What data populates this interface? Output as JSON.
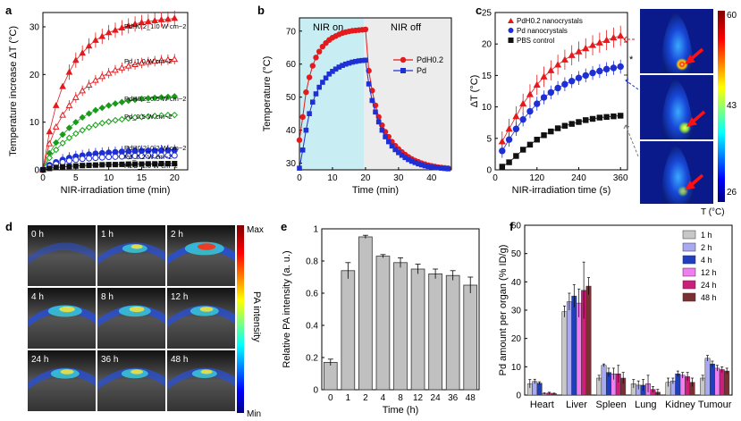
{
  "chart_data": [
    {
      "panel": "a",
      "type": "scatter",
      "xlabel": "NIR-irradiation time (min)",
      "ylabel": "Temperature increase ΔT (°C)",
      "xlim": [
        0,
        22
      ],
      "ylim": [
        0,
        33
      ],
      "xticks": [
        0,
        5,
        10,
        15,
        20
      ],
      "yticks": [
        0,
        10,
        20,
        30
      ],
      "x": [
        0,
        1,
        2,
        3,
        4,
        5,
        6,
        7,
        8,
        9,
        10,
        11,
        12,
        13,
        14,
        15,
        16,
        17,
        18,
        19,
        20
      ],
      "series": [
        {
          "name": "PdH0.2_1.0 W cm−2",
          "color": "#e41a1c",
          "marker": "triangle-filled",
          "values": [
            0,
            8,
            13.5,
            17.5,
            20.5,
            23,
            24.5,
            26,
            27.2,
            28,
            28.8,
            29.3,
            29.8,
            30.2,
            30.6,
            30.9,
            31.1,
            31.3,
            31.5,
            31.6,
            31.8
          ]
        },
        {
          "name": "Pd_1.0 W cm−2",
          "color": "#e41a1c",
          "marker": "triangle-open",
          "values": [
            0,
            5.5,
            9,
            11.5,
            13.5,
            15.2,
            16.6,
            17.8,
            18.8,
            19.6,
            20.3,
            20.9,
            21.4,
            21.8,
            22.1,
            22.4,
            22.6,
            22.8,
            23,
            23.1,
            23.2
          ]
        },
        {
          "name": "PdH0.2_0.5 W cm−2",
          "color": "#1a9b1a",
          "marker": "diamond-filled",
          "values": [
            0,
            3.5,
            5.7,
            7.4,
            8.8,
            10,
            11,
            11.8,
            12.5,
            13,
            13.5,
            13.9,
            14.2,
            14.5,
            14.7,
            14.9,
            15,
            15.1,
            15.2,
            15.3,
            15.4
          ]
        },
        {
          "name": "Pd_0.5 W cm−2",
          "color": "#1a9b1a",
          "marker": "diamond-open",
          "values": [
            0,
            2.5,
            4.2,
            5.6,
            6.7,
            7.6,
            8.3,
            8.9,
            9.4,
            9.8,
            10.1,
            10.4,
            10.6,
            10.8,
            11,
            11.1,
            11.2,
            11.3,
            11.4,
            11.5,
            11.5
          ]
        },
        {
          "name": "PdH0.2_0.2 W cm−2",
          "color": "#1f2fd6",
          "marker": "circle-filled",
          "values": [
            0,
            1.0,
            1.6,
            2.1,
            2.5,
            2.8,
            3.0,
            3.2,
            3.4,
            3.5,
            3.6,
            3.7,
            3.8,
            3.85,
            3.9,
            3.95,
            4.0,
            4.0,
            4.05,
            4.1,
            4.1
          ]
        },
        {
          "name": "Pd_0.2 W cm−2",
          "color": "#1f2fd6",
          "marker": "circle-open",
          "values": [
            0,
            0.7,
            1.2,
            1.6,
            1.9,
            2.1,
            2.3,
            2.4,
            2.5,
            2.6,
            2.7,
            2.75,
            2.8,
            2.85,
            2.9,
            2.9,
            2.95,
            3.0,
            3.0,
            3.0,
            3.0
          ]
        },
        {
          "name": "H2O_1.0 W cm−2",
          "color": "#111111",
          "marker": "square-filled",
          "values": [
            0,
            0.3,
            0.5,
            0.6,
            0.7,
            0.8,
            0.9,
            0.95,
            1.0,
            1.05,
            1.1,
            1.1,
            1.15,
            1.2,
            1.2,
            1.2,
            1.25,
            1.25,
            1.3,
            1.3,
            1.3
          ]
        }
      ]
    },
    {
      "panel": "b",
      "type": "line",
      "xlabel": "Time (min)",
      "ylabel": "Temperature (°C)",
      "xlim": [
        0,
        46
      ],
      "ylim": [
        28,
        74
      ],
      "xticks": [
        0,
        10,
        20,
        30,
        40
      ],
      "yticks": [
        30,
        40,
        50,
        60,
        70
      ],
      "regions": [
        {
          "label": "NIR on",
          "from": 0,
          "to": 20
        },
        {
          "label": "NIR off",
          "from": 20,
          "to": 46
        }
      ],
      "series": [
        {
          "name": "PdH0.2",
          "color": "#e41a1c",
          "marker": "circle",
          "x": [
            0,
            1,
            2,
            3,
            4,
            5,
            6,
            7,
            8,
            9,
            10,
            11,
            12,
            13,
            14,
            15,
            16,
            17,
            18,
            19,
            20,
            21,
            22,
            23,
            24,
            25,
            26,
            27,
            28,
            29,
            30,
            31,
            32,
            33,
            34,
            35,
            36,
            37,
            38,
            39,
            40,
            41,
            42,
            43,
            44,
            45
          ],
          "values": [
            37,
            44,
            51.5,
            56,
            59.5,
            62,
            63.8,
            65.3,
            66.4,
            67.3,
            68,
            68.5,
            69,
            69.4,
            69.7,
            69.9,
            70.1,
            70.2,
            70.3,
            70.4,
            70.5,
            58,
            52,
            47.5,
            44,
            41.5,
            39.5,
            38,
            36.5,
            35.3,
            34.3,
            33.4,
            32.6,
            31.9,
            31.3,
            30.8,
            30.4,
            30.0,
            29.7,
            29.4,
            29.2,
            29.0,
            28.8,
            28.7,
            28.6,
            28.5
          ]
        },
        {
          "name": "Pd",
          "color": "#1f2fd6",
          "marker": "square",
          "x": [
            0,
            1,
            2,
            3,
            4,
            5,
            6,
            7,
            8,
            9,
            10,
            11,
            12,
            13,
            14,
            15,
            16,
            17,
            18,
            19,
            20,
            21,
            22,
            23,
            24,
            25,
            26,
            27,
            28,
            29,
            30,
            31,
            32,
            33,
            34,
            35,
            36,
            37,
            38,
            39,
            40,
            41,
            42,
            43,
            44,
            45
          ],
          "values": [
            28.5,
            34,
            40,
            45,
            48.5,
            51,
            53,
            54.5,
            55.8,
            57,
            57.8,
            58.5,
            59.1,
            59.6,
            60,
            60.3,
            60.6,
            60.8,
            61,
            61.1,
            61.2,
            54,
            49,
            45.5,
            42.5,
            40,
            38,
            36.5,
            35.2,
            34.1,
            33.2,
            32.4,
            31.7,
            31.1,
            30.6,
            30.2,
            29.8,
            29.5,
            29.2,
            29.0,
            28.8,
            28.7,
            28.6,
            28.5,
            28.4,
            28.3
          ]
        }
      ]
    },
    {
      "panel": "c",
      "type": "scatter",
      "xlabel": "NIR-irradiation time (s)",
      "ylabel": "ΔT (°C)",
      "xlim": [
        0,
        380
      ],
      "ylim": [
        0,
        25
      ],
      "xticks": [
        0,
        120,
        240,
        360
      ],
      "yticks": [
        0,
        5,
        10,
        15,
        20,
        25
      ],
      "x": [
        20,
        40,
        60,
        80,
        100,
        120,
        140,
        160,
        180,
        200,
        220,
        240,
        260,
        280,
        300,
        320,
        340,
        360
      ],
      "series": [
        {
          "name": "PdH0.2 nanocrystals",
          "color": "#e41a1c",
          "marker": "triangle-filled",
          "values": [
            4.5,
            6.5,
            8.5,
            10.5,
            12,
            13.5,
            14.8,
            15.8,
            16.7,
            17.5,
            18.2,
            18.8,
            19.3,
            19.8,
            20.2,
            20.6,
            21,
            21.3
          ]
        },
        {
          "name": "Pd nanocrystals",
          "color": "#1f2fd6",
          "marker": "circle-filled",
          "values": [
            3,
            4.8,
            6.5,
            8,
            9.3,
            10.5,
            11.5,
            12.3,
            13,
            13.6,
            14.1,
            14.6,
            15,
            15.4,
            15.7,
            16,
            16.2,
            16.4
          ]
        },
        {
          "name": "PBS control",
          "color": "#111111",
          "marker": "square-filled",
          "values": [
            0.5,
            1.2,
            2.2,
            3.2,
            4.0,
            4.8,
            5.5,
            6.1,
            6.6,
            7.0,
            7.3,
            7.6,
            7.9,
            8.1,
            8.3,
            8.4,
            8.5,
            8.6
          ]
        }
      ],
      "significance": "*",
      "colorbar": {
        "label": "T (°C)",
        "ticks": [
          "60",
          "43",
          "26"
        ]
      }
    },
    {
      "panel": "d",
      "type": "heatmap",
      "timepoints": [
        "0 h",
        "1 h",
        "2 h",
        "4 h",
        "8 h",
        "12 h",
        "24 h",
        "36 h",
        "48 h"
      ],
      "colorbar": {
        "label": "PA intensity",
        "max": "Max",
        "min": "Min"
      }
    },
    {
      "panel": "e",
      "type": "bar",
      "xlabel": "Time (h)",
      "ylabel": "Relative PA intensity (a. u.)",
      "ylim": [
        0,
        1.0
      ],
      "yticks": [
        0.0,
        0.2,
        0.4,
        0.6,
        0.8,
        1.0
      ],
      "categories": [
        "0",
        "1",
        "2",
        "4",
        "8",
        "12",
        "24",
        "36",
        "48"
      ],
      "values": [
        0.17,
        0.74,
        0.95,
        0.83,
        0.79,
        0.75,
        0.72,
        0.71,
        0.65
      ],
      "errors": [
        0.02,
        0.05,
        0.01,
        0.01,
        0.03,
        0.03,
        0.03,
        0.03,
        0.05
      ]
    },
    {
      "panel": "f",
      "type": "bar",
      "xlabel": "",
      "ylabel": "Pd amount per organ (% ID/g)",
      "ylim": [
        0,
        60
      ],
      "yticks": [
        0,
        10,
        20,
        30,
        40,
        50,
        60
      ],
      "categories": [
        "Heart",
        "Liver",
        "Spleen",
        "Lung",
        "Kidney",
        "Tumour"
      ],
      "series": [
        {
          "name": "1 h",
          "color": "#c8c8c8",
          "values": [
            4,
            29.5,
            6,
            4,
            4.5,
            6
          ],
          "errors": [
            1.5,
            2,
            1,
            1.5,
            1.5,
            1
          ]
        },
        {
          "name": "2 h",
          "color": "#a9a9f2",
          "values": [
            4.8,
            33,
            10.5,
            3.5,
            5,
            13
          ],
          "errors": [
            0.8,
            3,
            0.5,
            1.5,
            1,
            1
          ]
        },
        {
          "name": "4 h",
          "color": "#1f3fbf",
          "values": [
            4.2,
            35,
            8,
            3.5,
            7.5,
            11
          ],
          "errors": [
            0.5,
            4,
            1.5,
            2,
            1,
            1
          ]
        },
        {
          "name": "12 h",
          "color": "#f07ef0",
          "values": [
            0.5,
            32.5,
            7.5,
            4,
            7,
            9.5
          ],
          "errors": [
            0.3,
            5,
            2,
            3,
            1,
            1
          ]
        },
        {
          "name": "24 h",
          "color": "#cc1f7a",
          "values": [
            0.7,
            37,
            7.5,
            2,
            6.5,
            9
          ],
          "errors": [
            0.3,
            10,
            3,
            1,
            1.5,
            1
          ]
        },
        {
          "name": "48 h",
          "color": "#7a3033",
          "values": [
            0.5,
            38.5,
            6,
            1,
            4.5,
            8.5
          ],
          "errors": [
            0.2,
            3,
            2,
            1,
            1.5,
            1
          ]
        }
      ]
    }
  ],
  "panel_labels": {
    "a": "a",
    "b": "b",
    "c": "c",
    "d": "d",
    "e": "e",
    "f": "f"
  },
  "a_labels": {
    "s1": "PdH0.2_1.0 W cm−2",
    "s2": "Pd_1.0 W cm−2",
    "s3": "PdH0.2_0.5 W cm−2",
    "s4": "Pd_0.5 W cm−2",
    "s5": "PdH0.2_0.2 W cm−2",
    "s6": "Pd_0.2 W cm−2",
    "s7": "H2O_1.0 W cm−2"
  },
  "b_labels": {
    "on": "NIR on",
    "off": "NIR off",
    "leg1": "PdH0.2",
    "leg2": "Pd"
  },
  "c_labels": {
    "leg1": "PdH0.2 nanocrystals",
    "leg2": "Pd nanocrystals",
    "leg3": "PBS control",
    "sig": "*"
  },
  "c_colorbar": {
    "t60": "60",
    "t43": "43",
    "t26": "26",
    "unit": "T (°C)"
  },
  "d_labels": {
    "max": "Max",
    "min": "Min",
    "axis": "PA intensity"
  }
}
